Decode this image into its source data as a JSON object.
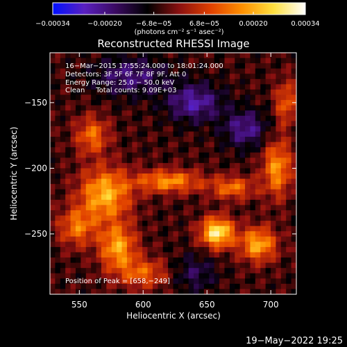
{
  "chart_data": {
    "type": "heatmap",
    "title": "Reconstructed RHESSI Image",
    "xlabel": "Heliocentric X (arcsec)",
    "ylabel": "Heliocentric Y (arcsec)",
    "xlim": [
      527,
      720
    ],
    "ylim": [
      -296,
      -112
    ],
    "x_ticks": [
      550,
      600,
      650,
      700
    ],
    "x_tick_labels": [
      "550",
      "600",
      "650",
      "700"
    ],
    "y_ticks": [
      -150,
      -200,
      -250
    ],
    "y_tick_labels": [
      "−150",
      "−200",
      "−250"
    ],
    "colorbar": {
      "range": [
        -0.00034,
        0.00034
      ],
      "tick_values": [
        -0.00034,
        -0.0002,
        -6.8e-05,
        6.8e-05,
        0.0002,
        0.00034
      ],
      "tick_labels": [
        "−0.00034",
        "−0.00020",
        "−6.8e−05",
        "6.8e−05",
        "0.00020",
        "0.00034"
      ],
      "unit_label": "(photons cm⁻² s⁻¹ asec⁻²)"
    },
    "annotations": [
      "16−Mar−2015 17:55:24.000 to 18:01:24.000",
      "Detectors: 3F 5F 6F 7F 8F 9F, Att 0",
      "Energy Range: 25.0 − 50.0 keV",
      "Clean     Total counts: 9.09E+03"
    ],
    "peak_label": "Position of Peak = [658,−249]",
    "peak": [
      658,
      -249
    ],
    "colormap": [
      "#0010ff",
      "#5a20c0",
      "#3a0a60",
      "#000000",
      "#8a1010",
      "#e04000",
      "#ff9000",
      "#ffe040",
      "#ffffff"
    ],
    "grid": false,
    "sources": [
      {
        "x": 658,
        "y": -249,
        "sx": 9,
        "sy": 8,
        "amp": 0.00034
      },
      {
        "x": 690,
        "y": -258,
        "sx": 10,
        "sy": 9,
        "amp": 0.00025
      },
      {
        "x": 570,
        "y": -220,
        "sx": 14,
        "sy": 14,
        "amp": 0.00026
      },
      {
        "x": 580,
        "y": -260,
        "sx": 10,
        "sy": 12,
        "amp": 0.00024
      },
      {
        "x": 548,
        "y": -245,
        "sx": 10,
        "sy": 10,
        "amp": 0.00018
      },
      {
        "x": 560,
        "y": -175,
        "sx": 9,
        "sy": 10,
        "amp": 0.00018
      },
      {
        "x": 620,
        "y": -210,
        "sx": 18,
        "sy": 6,
        "amp": 0.00022
      },
      {
        "x": 670,
        "y": -215,
        "sx": 12,
        "sy": 6,
        "amp": 0.00018
      },
      {
        "x": 705,
        "y": -200,
        "sx": 8,
        "sy": 15,
        "amp": 0.00022
      },
      {
        "x": 712,
        "y": -150,
        "sx": 6,
        "sy": 12,
        "amp": 0.00016
      },
      {
        "x": 600,
        "y": -280,
        "sx": 14,
        "sy": 8,
        "amp": 0.00016
      },
      {
        "x": 640,
        "y": -150,
        "sx": 15,
        "sy": 10,
        "amp": -0.00018
      },
      {
        "x": 590,
        "y": -130,
        "sx": 20,
        "sy": 10,
        "amp": -0.00014
      },
      {
        "x": 680,
        "y": -170,
        "sx": 12,
        "sy": 10,
        "amp": -0.00016
      },
      {
        "x": 640,
        "y": -280,
        "sx": 12,
        "sy": 10,
        "amp": -0.0001
      }
    ]
  },
  "footer": {
    "timestamp": "19−May−2022 19:25"
  }
}
